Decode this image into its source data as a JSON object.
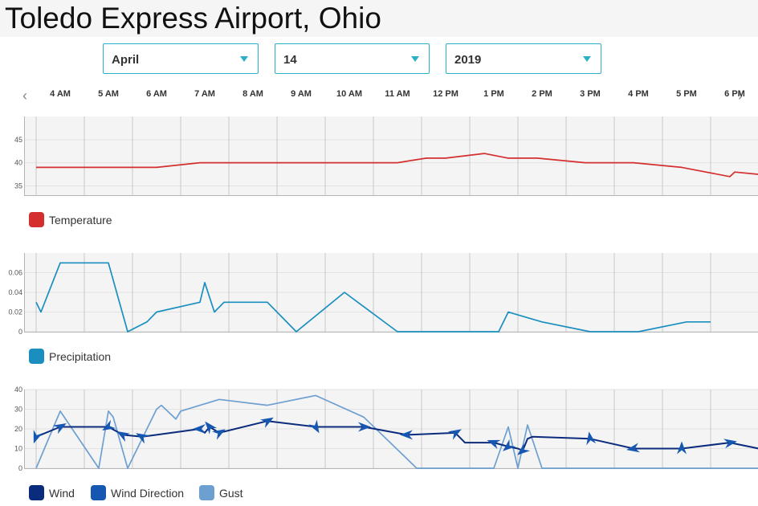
{
  "page": {
    "title": "Toledo Express Airport, Ohio"
  },
  "selectors": {
    "month": "April",
    "day": "14",
    "year": "2019"
  },
  "colors": {
    "temperature": "#d42e2e",
    "precipitation": "#1a8fbf",
    "wind": "#0b2c7c",
    "wind_direction": "#1657b2",
    "gust": "#6d9fd1",
    "accent": "#2bb0c8"
  },
  "icons": {
    "prev": "chevron-left-icon",
    "next": "chevron-right-icon",
    "dropdown": "caret-down-icon"
  },
  "hours": [
    "4 AM",
    "5 AM",
    "6 AM",
    "7 AM",
    "8 AM",
    "9 AM",
    "10 AM",
    "11 AM",
    "12 PM",
    "1 PM",
    "2 PM",
    "3 PM",
    "4 PM",
    "5 PM",
    "6 PM"
  ],
  "chart_data": [
    {
      "type": "line",
      "x_labels": [
        "4 AM",
        "5 AM",
        "6 AM",
        "7 AM",
        "8 AM",
        "9 AM",
        "10 AM",
        "11 AM",
        "12 PM",
        "1 PM",
        "2 PM",
        "3 PM",
        "4 PM",
        "5 PM",
        "6 PM"
      ],
      "ylim": [
        33,
        50
      ],
      "yticks": [
        35,
        40,
        45
      ],
      "grid": true,
      "legend_position": "bottom-left",
      "series": [
        {
          "name": "Temperature",
          "points": [
            [
              3.5,
              39
            ],
            [
              6.0,
              39
            ],
            [
              6.9,
              40
            ],
            [
              8.0,
              40
            ],
            [
              9.0,
              40
            ],
            [
              10.0,
              40
            ],
            [
              11.0,
              40
            ],
            [
              11.6,
              41
            ],
            [
              12.0,
              41
            ],
            [
              12.8,
              42
            ],
            [
              13.3,
              41
            ],
            [
              13.9,
              41
            ],
            [
              14.9,
              40
            ],
            [
              15.9,
              40
            ],
            [
              16.9,
              39
            ],
            [
              17.9,
              37
            ],
            [
              18.0,
              38
            ],
            [
              18.5,
              37.5
            ]
          ]
        }
      ]
    },
    {
      "type": "line",
      "x_labels": [
        "4 AM",
        "5 AM",
        "6 AM",
        "7 AM",
        "8 AM",
        "9 AM",
        "10 AM",
        "11 AM",
        "12 PM",
        "1 PM",
        "2 PM",
        "3 PM",
        "4 PM",
        "5 PM",
        "6 PM"
      ],
      "ylim": [
        0,
        0.08
      ],
      "yticks": [
        0,
        0.02,
        0.04,
        0.06
      ],
      "ytick_labels": [
        "0",
        "0.02",
        "0.04",
        "0.06"
      ],
      "grid": true,
      "legend_position": "bottom-left",
      "series": [
        {
          "name": "Precipitation",
          "points": [
            [
              3.5,
              0.03
            ],
            [
              3.6,
              0.02
            ],
            [
              4.0,
              0.07
            ],
            [
              5.0,
              0.07
            ],
            [
              5.4,
              0.0
            ],
            [
              5.8,
              0.01
            ],
            [
              6.0,
              0.02
            ],
            [
              6.9,
              0.03
            ],
            [
              7.0,
              0.05
            ],
            [
              7.2,
              0.02
            ],
            [
              7.4,
              0.03
            ],
            [
              8.3,
              0.03
            ],
            [
              8.9,
              0.0
            ],
            [
              9.9,
              0.04
            ],
            [
              11.0,
              0.0
            ],
            [
              12.0,
              0.0
            ],
            [
              13.1,
              0.0
            ],
            [
              13.3,
              0.02
            ],
            [
              14.0,
              0.01
            ],
            [
              15.0,
              0.0
            ],
            [
              16.0,
              0.0
            ],
            [
              17.0,
              0.01
            ],
            [
              17.5,
              0.01
            ]
          ]
        }
      ]
    },
    {
      "type": "line",
      "x_labels": [
        "4 AM",
        "5 AM",
        "6 AM",
        "7 AM",
        "8 AM",
        "9 AM",
        "10 AM",
        "11 AM",
        "12 PM",
        "1 PM",
        "2 PM",
        "3 PM",
        "4 PM",
        "5 PM",
        "6 PM"
      ],
      "ylim": [
        0,
        40
      ],
      "yticks": [
        0,
        10,
        20,
        30,
        40
      ],
      "grid": true,
      "legend_position": "bottom-left",
      "series": [
        {
          "name": "Wind",
          "points": [
            [
              3.5,
              16
            ],
            [
              4.0,
              21
            ],
            [
              5.0,
              21
            ],
            [
              5.3,
              17
            ],
            [
              5.7,
              16
            ],
            [
              6.0,
              17
            ],
            [
              6.9,
              20
            ],
            [
              7.0,
              18
            ],
            [
              7.1,
              21
            ],
            [
              7.3,
              18
            ],
            [
              8.3,
              24
            ],
            [
              9.3,
              21
            ],
            [
              10.3,
              21
            ],
            [
              11.2,
              17
            ],
            [
              12.2,
              18
            ],
            [
              12.4,
              13
            ],
            [
              13.0,
              13
            ],
            [
              13.3,
              11
            ],
            [
              13.5,
              10
            ],
            [
              13.6,
              9
            ],
            [
              13.7,
              15
            ],
            [
              13.8,
              16
            ],
            [
              15.0,
              15
            ],
            [
              15.9,
              10
            ],
            [
              16.9,
              10
            ],
            [
              17.9,
              13
            ],
            [
              18.5,
              10
            ]
          ]
        },
        {
          "name": "Wind Direction",
          "markers": [
            [
              3.5,
              16,
              200
            ],
            [
              4.0,
              21,
              60
            ],
            [
              5.0,
              21,
              240
            ],
            [
              5.3,
              17,
              300
            ],
            [
              5.7,
              16,
              300
            ],
            [
              6.9,
              20,
              270
            ],
            [
              7.1,
              21,
              320
            ],
            [
              7.3,
              18,
              60
            ],
            [
              8.3,
              24,
              60
            ],
            [
              9.3,
              21,
              150
            ],
            [
              10.3,
              21,
              90
            ],
            [
              11.2,
              17,
              270
            ],
            [
              12.2,
              18,
              60
            ],
            [
              13.0,
              13,
              290
            ],
            [
              13.3,
              11,
              230
            ],
            [
              13.6,
              9,
              230
            ],
            [
              15.0,
              15,
              350
            ],
            [
              15.9,
              10,
              260
            ],
            [
              16.9,
              10,
              0
            ],
            [
              17.9,
              13,
              80
            ]
          ]
        },
        {
          "name": "Gust",
          "points": [
            [
              3.5,
              0
            ],
            [
              4.0,
              29
            ],
            [
              4.8,
              0
            ],
            [
              5.0,
              29
            ],
            [
              5.1,
              26
            ],
            [
              5.4,
              0
            ],
            [
              6.0,
              30
            ],
            [
              6.1,
              32
            ],
            [
              6.4,
              25
            ],
            [
              6.5,
              29
            ],
            [
              7.3,
              35
            ],
            [
              8.3,
              32
            ],
            [
              9.3,
              37
            ],
            [
              10.3,
              26
            ],
            [
              11.4,
              0
            ],
            [
              13.0,
              0
            ],
            [
              13.3,
              21
            ],
            [
              13.5,
              0
            ],
            [
              13.7,
              22
            ],
            [
              14.0,
              0
            ],
            [
              18.5,
              0
            ]
          ]
        }
      ]
    }
  ],
  "legends": {
    "temperature": [
      "Temperature"
    ],
    "precipitation": [
      "Precipitation"
    ],
    "wind": [
      "Wind",
      "Wind Direction",
      "Gust"
    ]
  }
}
